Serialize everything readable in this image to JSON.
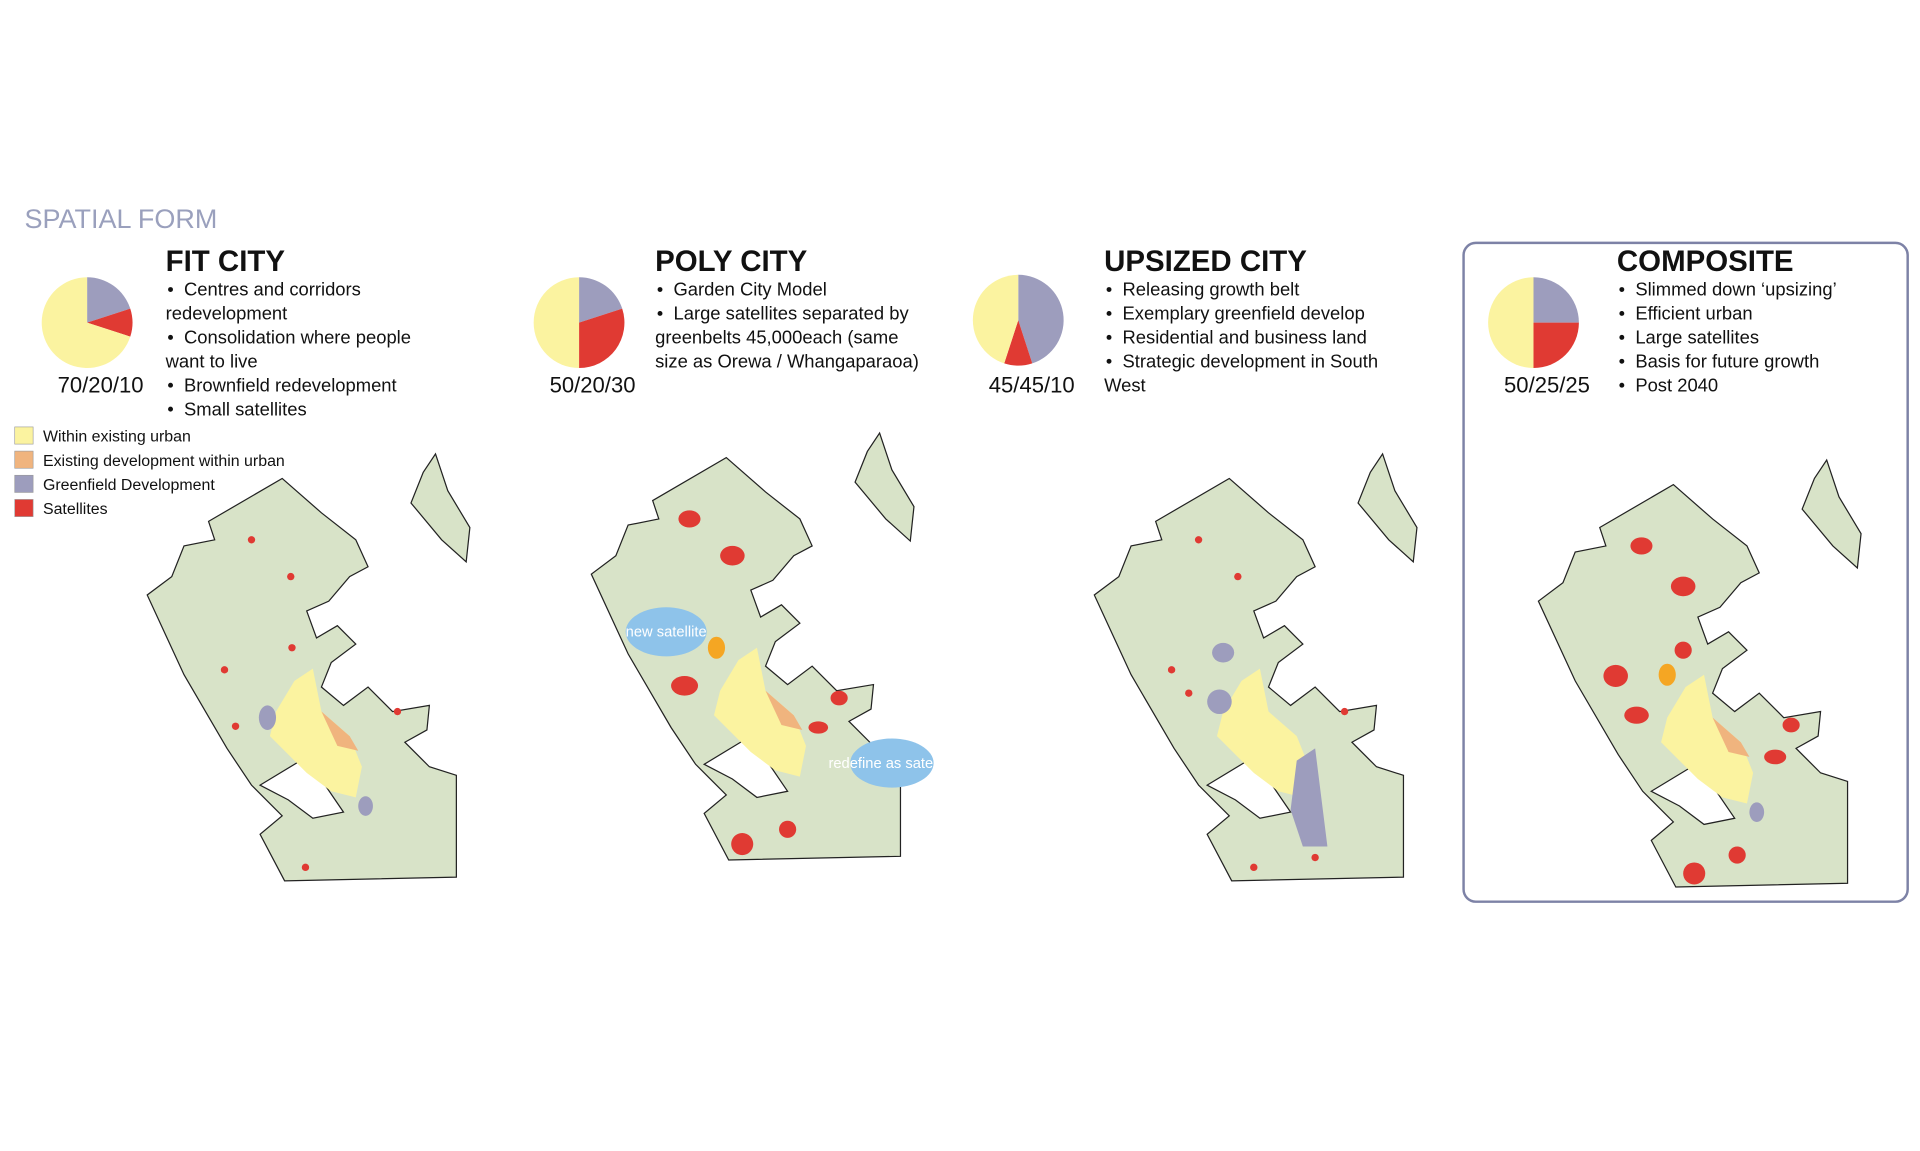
{
  "header": {
    "title": "SPATIAL FORM"
  },
  "legend": [
    {
      "label": "Within existing urban",
      "color": "#fbf3a0"
    },
    {
      "label": "Existing development within urban",
      "color": "#f0b47e"
    },
    {
      "label": "Greenfield Development",
      "color": "#9d9dbd"
    },
    {
      "label": "Satellites",
      "color": "#e03a33"
    }
  ],
  "panels": [
    {
      "title": "FIT CITY",
      "split_label": "70/20/10",
      "pie": {
        "values": [
          70,
          20,
          10
        ],
        "colors": [
          "#fbf3a0",
          "#9d9dbd",
          "#e03a33"
        ]
      },
      "bullets": [
        [
          "Centres and corridors",
          "redevelopment"
        ],
        [
          "Consolidation where people",
          "want to live"
        ],
        [
          "Brownfield redevelopment"
        ],
        [
          "Small satellites"
        ]
      ]
    },
    {
      "title": "POLY CITY",
      "split_label": "50/20/30",
      "pie": {
        "values": [
          50,
          20,
          30
        ],
        "colors": [
          "#fbf3a0",
          "#9d9dbd",
          "#e03a33"
        ]
      },
      "bullets": [
        [
          "Garden City Model"
        ],
        [
          "Large satellites separated by",
          "greenbelts 45,000each (same",
          "size as Orewa / Whangaparaoa)"
        ]
      ],
      "notes": [
        "new satellite",
        "redefine as satellite"
      ]
    },
    {
      "title": "UPSIZED CITY",
      "split_label": "45/45/10",
      "pie": {
        "values": [
          45,
          45,
          10
        ],
        "colors": [
          "#fbf3a0",
          "#9d9dbd",
          "#e03a33"
        ]
      },
      "bullets": [
        [
          "Releasing growth belt"
        ],
        [
          "Exemplary greenfield develop"
        ],
        [
          "Residential and business land"
        ],
        [
          "Strategic development in South",
          "West"
        ]
      ]
    },
    {
      "title": "COMPOSITE",
      "split_label": "50/25/25",
      "pie": {
        "values": [
          50,
          25,
          25
        ],
        "colors": [
          "#fbf3a0",
          "#9d9dbd",
          "#e03a33"
        ]
      },
      "bullets": [
        [
          "Slimmed down ‘upsizing’"
        ],
        [
          "Efficient urban"
        ],
        [
          "Large satellites"
        ],
        [
          "Basis for future growth"
        ],
        [
          "Post 2040"
        ]
      ]
    }
  ]
}
